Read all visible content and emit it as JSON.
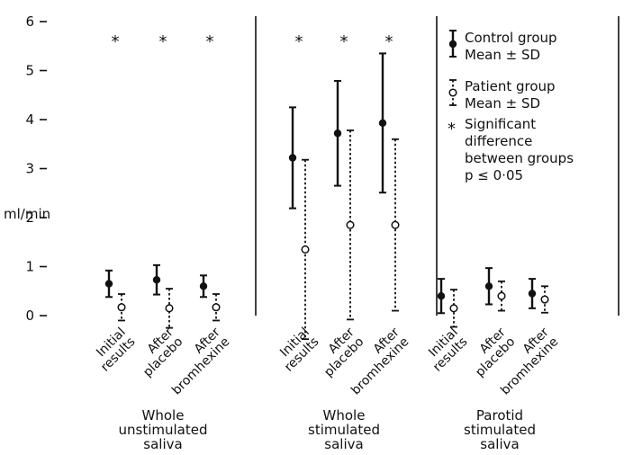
{
  "chart_data": {
    "type": "scatter",
    "subtype": "error-bar",
    "ylabel": "ml/min",
    "ylim": [
      0,
      6
    ],
    "yticks": [
      0,
      1,
      2,
      3,
      4,
      5,
      6
    ],
    "grid": false,
    "legend_position": "right",
    "legend": {
      "control_line1": "Control group",
      "control_line2": "Mean ± SD",
      "patient_line1": "Patient group",
      "patient_line2": "Mean ± SD",
      "sig_star": "*",
      "sig_line1": "Significant",
      "sig_line2": "difference",
      "sig_line3": "between groups",
      "sig_line4": "p ≤ 0·05"
    },
    "significance_marker": "*",
    "panels": [
      {
        "label_lines": [
          "Whole",
          "unstimulated",
          "saliva"
        ],
        "groups": [
          {
            "label_lines": [
              "Initial",
              "results"
            ],
            "control": {
              "mean": 0.65,
              "sd": 0.27
            },
            "patient": {
              "mean": 0.17,
              "sd": 0.27
            },
            "significant": true
          },
          {
            "label_lines": [
              "After",
              "placebo"
            ],
            "control": {
              "mean": 0.73,
              "sd": 0.3
            },
            "patient": {
              "mean": 0.15,
              "sd": 0.4
            },
            "significant": true
          },
          {
            "label_lines": [
              "After",
              "bromhexine"
            ],
            "control": {
              "mean": 0.6,
              "sd": 0.22
            },
            "patient": {
              "mean": 0.17,
              "sd": 0.27
            },
            "significant": true
          }
        ]
      },
      {
        "label_lines": [
          "Whole",
          "stimulated",
          "saliva"
        ],
        "groups": [
          {
            "label_lines": [
              "Initial",
              "results"
            ],
            "control": {
              "mean": 3.22,
              "sd": 1.03
            },
            "patient": {
              "mean": 1.35,
              "sd": 1.83
            },
            "significant": true
          },
          {
            "label_lines": [
              "After",
              "placebo"
            ],
            "control": {
              "mean": 3.72,
              "sd": 1.07
            },
            "patient": {
              "mean": 1.85,
              "sd": 1.93
            },
            "significant": true
          },
          {
            "label_lines": [
              "After",
              "bromhexine"
            ],
            "control": {
              "mean": 3.93,
              "sd": 1.42
            },
            "patient": {
              "mean": 1.85,
              "sd": 1.75
            },
            "significant": true
          }
        ]
      },
      {
        "label_lines": [
          "Parotid",
          "stimulated",
          "saliva"
        ],
        "groups": [
          {
            "label_lines": [
              "Initial",
              "results"
            ],
            "control": {
              "mean": 0.4,
              "sd": 0.35
            },
            "patient": {
              "mean": 0.15,
              "sd": 0.38
            },
            "significant": false
          },
          {
            "label_lines": [
              "After",
              "placebo"
            ],
            "control": {
              "mean": 0.6,
              "sd": 0.37
            },
            "patient": {
              "mean": 0.4,
              "sd": 0.3
            },
            "significant": false
          },
          {
            "label_lines": [
              "After",
              "bromhexine"
            ],
            "control": {
              "mean": 0.45,
              "sd": 0.3
            },
            "patient": {
              "mean": 0.33,
              "sd": 0.27
            },
            "significant": false
          }
        ]
      }
    ]
  }
}
